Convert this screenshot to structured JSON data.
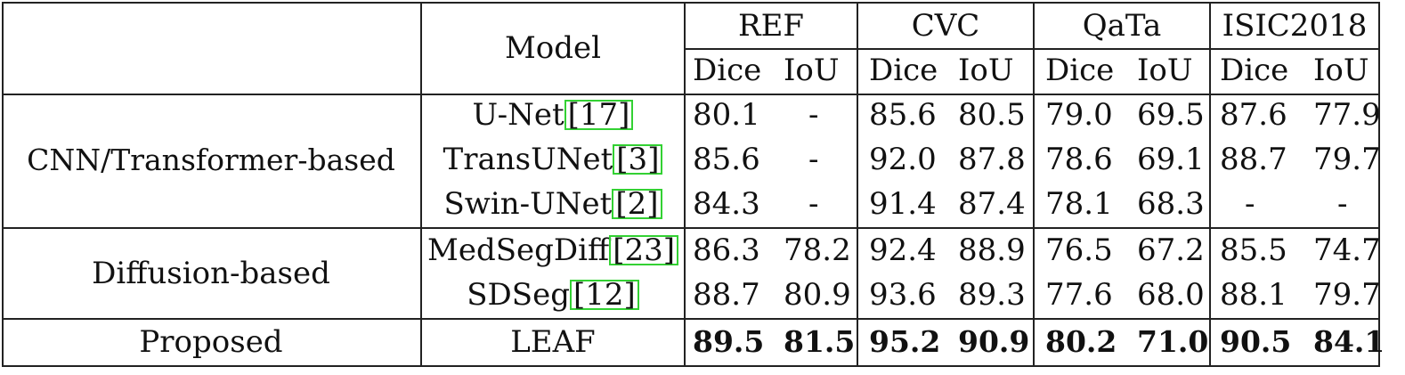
{
  "table": {
    "header": {
      "model": "Model",
      "datasets": [
        "REF",
        "CVC",
        "QaTa",
        "ISIC2018"
      ],
      "metrics": [
        "Dice",
        "IoU"
      ]
    },
    "groups": [
      {
        "label": "CNN/Transformer-based"
      },
      {
        "label": "Diffusion-based"
      },
      {
        "label": "Proposed"
      }
    ],
    "rows": [
      {
        "name": "U-Net",
        "cite": "17",
        "values": [
          "80.1",
          "-",
          "85.6",
          "80.5",
          "79.0",
          "69.5",
          "87.6",
          "77.9"
        ]
      },
      {
        "name": "TransUNet",
        "cite": "3",
        "values": [
          "85.6",
          "-",
          "92.0",
          "87.8",
          "78.6",
          "69.1",
          "88.7",
          "79.7"
        ]
      },
      {
        "name": "Swin-UNet",
        "cite": "2",
        "values": [
          "84.3",
          "-",
          "91.4",
          "87.4",
          "78.1",
          "68.3",
          "-",
          "-"
        ]
      },
      {
        "name": "MedSegDiff",
        "cite": "23",
        "values": [
          "86.3",
          "78.2",
          "92.4",
          "88.9",
          "76.5",
          "67.2",
          "85.5",
          "74.7"
        ]
      },
      {
        "name": "SDSeg",
        "cite": "12",
        "values": [
          "88.7",
          "80.9",
          "93.6",
          "89.3",
          "77.6",
          "68.0",
          "88.1",
          "79.7"
        ]
      },
      {
        "name": "LEAF",
        "cite": "",
        "values": [
          "89.5",
          "81.5",
          "95.2",
          "90.9",
          "80.2",
          "71.0",
          "90.5",
          "84.1"
        ]
      }
    ]
  }
}
